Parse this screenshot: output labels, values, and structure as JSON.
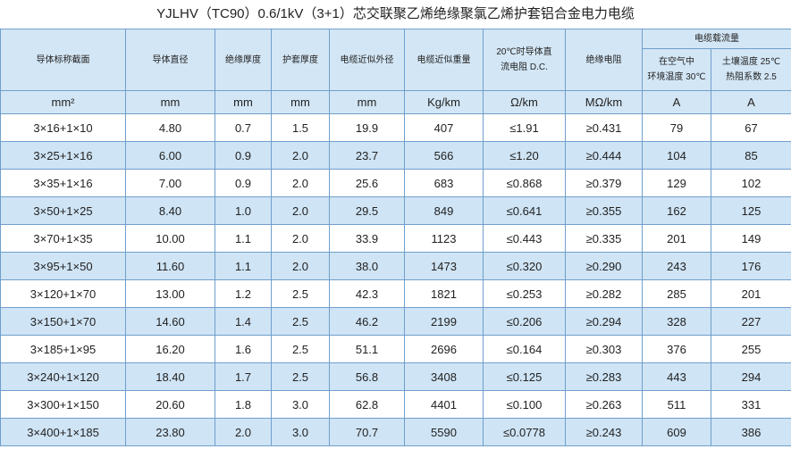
{
  "title": "YJLHV（TC90）0.6/1kV（3+1）芯交联聚乙烯绝缘聚氯乙烯护套铝合金电力电缆",
  "header": {
    "columns": [
      [
        "导体标称截面"
      ],
      [
        "导体直径"
      ],
      [
        "绝缘厚度"
      ],
      [
        "护套厚度"
      ],
      [
        "电缆近似外径"
      ],
      [
        "电缆近似重量"
      ],
      [
        "20℃时导体直",
        "流电阻 D.C."
      ],
      [
        "绝缘电阻"
      ]
    ],
    "group": "电缆载流量",
    "subcolumns": [
      [
        "在空气中",
        "环境温度 30℃"
      ],
      [
        "土壤温度 25℃",
        "热阻系数 2.5"
      ]
    ]
  },
  "units": [
    "mm²",
    "mm",
    "mm",
    "mm",
    "mm",
    "Kg/km",
    "Ω/km",
    "MΩ/km",
    "A",
    "A"
  ],
  "rows": [
    [
      "3×16+1×10",
      "4.80",
      "0.7",
      "1.5",
      "19.9",
      "407",
      "≤1.91",
      "≥0.431",
      "79",
      "67"
    ],
    [
      "3×25+1×16",
      "6.00",
      "0.9",
      "2.0",
      "23.7",
      "566",
      "≤1.20",
      "≥0.444",
      "104",
      "85"
    ],
    [
      "3×35+1×16",
      "7.00",
      "0.9",
      "2.0",
      "25.6",
      "683",
      "≤0.868",
      "≥0.379",
      "129",
      "102"
    ],
    [
      "3×50+1×25",
      "8.40",
      "1.0",
      "2.0",
      "29.5",
      "849",
      "≤0.641",
      "≥0.355",
      "162",
      "125"
    ],
    [
      "3×70+1×35",
      "10.00",
      "1.1",
      "2.0",
      "33.9",
      "1123",
      "≤0.443",
      "≥0.335",
      "201",
      "149"
    ],
    [
      "3×95+1×50",
      "11.60",
      "1.1",
      "2.0",
      "38.0",
      "1473",
      "≤0.320",
      "≥0.290",
      "243",
      "176"
    ],
    [
      "3×120+1×70",
      "13.00",
      "1.2",
      "2.5",
      "42.3",
      "1821",
      "≤0.253",
      "≥0.282",
      "285",
      "201"
    ],
    [
      "3×150+1×70",
      "14.60",
      "1.4",
      "2.5",
      "46.2",
      "2199",
      "≤0.206",
      "≥0.294",
      "328",
      "227"
    ],
    [
      "3×185+1×95",
      "16.20",
      "1.6",
      "2.5",
      "51.1",
      "2696",
      "≤0.164",
      "≥0.303",
      "376",
      "255"
    ],
    [
      "3×240+1×120",
      "18.40",
      "1.7",
      "2.5",
      "56.8",
      "3408",
      "≤0.125",
      "≥0.283",
      "443",
      "294"
    ],
    [
      "3×300+1×150",
      "20.60",
      "1.8",
      "3.0",
      "62.8",
      "4401",
      "≤0.100",
      "≥0.263",
      "511",
      "331"
    ],
    [
      "3×400+1×185",
      "23.80",
      "2.0",
      "3.0",
      "70.7",
      "5590",
      "≤0.0778",
      "≥0.243",
      "609",
      "386"
    ]
  ]
}
